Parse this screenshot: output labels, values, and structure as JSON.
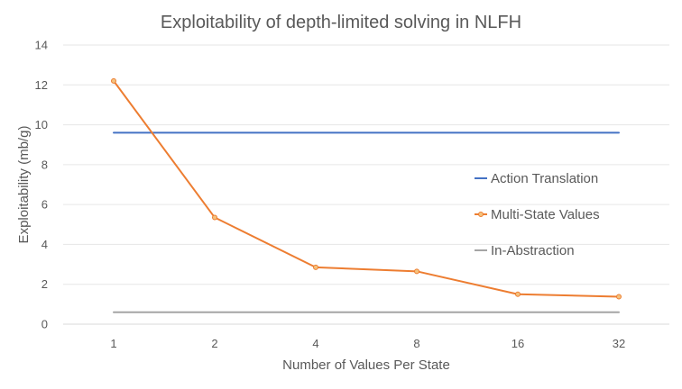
{
  "chart_data": {
    "type": "line",
    "title": "Exploitability of depth-limited solving in NLFH",
    "xlabel": "Number of Values Per State",
    "ylabel": "Exploitability (mb/g)",
    "categories": [
      "1",
      "2",
      "4",
      "8",
      "16",
      "32"
    ],
    "ylim": [
      0,
      14
    ],
    "yticks": [
      0,
      2,
      4,
      6,
      8,
      10,
      12,
      14
    ],
    "grid": true,
    "legend_position": "right",
    "series": [
      {
        "name": "Action Translation",
        "values": [
          9.6,
          9.6,
          9.6,
          9.6,
          9.6,
          9.6
        ],
        "color": "#4472C4",
        "markers": false,
        "extends_to_edges": true
      },
      {
        "name": "Multi-State Values",
        "values": [
          12.2,
          5.35,
          2.85,
          2.65,
          1.5,
          1.38
        ],
        "color": "#ED7D31",
        "markers": true,
        "extends_to_edges": false
      },
      {
        "name": "In-Abstraction",
        "values": [
          0.6,
          0.6,
          0.6,
          0.6,
          0.6,
          0.6
        ],
        "color": "#A5A5A5",
        "markers": false,
        "extends_to_edges": true
      }
    ]
  }
}
